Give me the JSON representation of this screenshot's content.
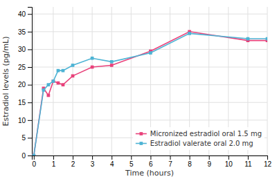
{
  "chart_data": {
    "type": "line",
    "x_label": "Time (hours)",
    "y_label": "Estradiol levels (pg/mL)",
    "x": [
      0,
      0.5,
      0.75,
      1.0,
      1.25,
      1.5,
      2.0,
      3.0,
      4.0,
      6.0,
      8.0,
      11.0,
      12.0
    ],
    "series": [
      {
        "name": "Micronized estradiol oral 1.5 mg",
        "color": "#e8417a",
        "values": [
          0,
          19.0,
          17.0,
          21.0,
          20.5,
          20.0,
          22.5,
          25.0,
          25.5,
          29.5,
          35.0,
          32.5,
          32.5
        ]
      },
      {
        "name": "Estradiol valerate oral 2.0 mg",
        "color": "#4db3d4",
        "values": [
          0,
          18.5,
          20.0,
          21.0,
          24.0,
          24.0,
          25.5,
          27.5,
          26.5,
          29.0,
          34.5,
          33.0,
          33.0
        ]
      }
    ],
    "xlim": [
      -0.1,
      12
    ],
    "ylim": [
      0,
      42
    ],
    "xticks": [
      0,
      1,
      2,
      3,
      4,
      5,
      6,
      7,
      8,
      9,
      10,
      11,
      12
    ],
    "yticks": [
      0,
      5,
      10,
      15,
      20,
      25,
      30,
      35,
      40
    ],
    "grid": true,
    "legend": "lower right",
    "marker": "square"
  }
}
